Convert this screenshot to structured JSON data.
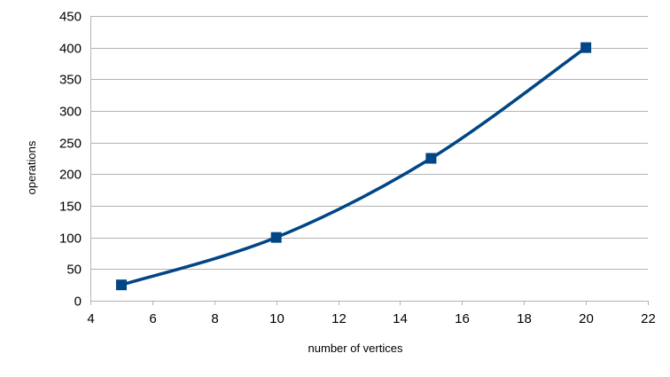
{
  "chart_data": {
    "type": "line",
    "title": "",
    "xlabel": "number of vertices",
    "ylabel": "operations",
    "xlim": [
      4,
      22
    ],
    "ylim": [
      0,
      450
    ],
    "x_ticks": [
      4,
      6,
      8,
      10,
      12,
      14,
      16,
      18,
      20,
      22
    ],
    "y_ticks": [
      0,
      50,
      100,
      150,
      200,
      250,
      300,
      350,
      400,
      450
    ],
    "grid": "horizontal",
    "legend": "none",
    "smooth": true,
    "marker": "square",
    "series_color": "#004586",
    "series": [
      {
        "x": [
          5,
          10,
          15,
          20
        ],
        "values": [
          25,
          100,
          225,
          400
        ]
      }
    ]
  }
}
